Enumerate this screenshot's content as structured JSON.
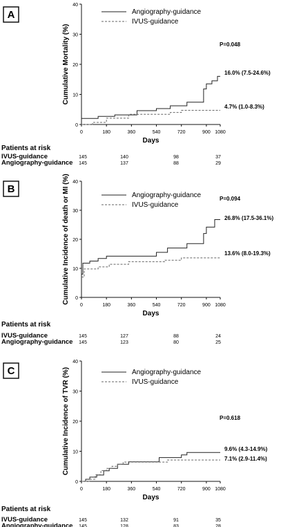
{
  "chart_data": [
    {
      "type": "line",
      "panel_label": "A",
      "ylabel": "Cumulative Mortality (%)",
      "xlabel": "Days",
      "xlim": [
        0,
        1000
      ],
      "ylim": [
        0,
        40
      ],
      "xticks": [
        0,
        180,
        360,
        540,
        720,
        900,
        1080
      ],
      "xtick_labels": [
        "0",
        "180",
        "360",
        "540",
        "720",
        "900",
        "1080"
      ],
      "yticks": [
        0,
        10,
        20,
        30,
        40
      ],
      "legend": [
        "Angiography-guidance",
        "IVUS-guidance"
      ],
      "p_value": "P=0.048",
      "series": [
        {
          "name": "Angiography-guidance",
          "style": "solid",
          "x": [
            0,
            120,
            240,
            400,
            540,
            640,
            760,
            880,
            900,
            940,
            980,
            1000
          ],
          "y": [
            2,
            2.7,
            3.2,
            4.6,
            5.3,
            6.2,
            7.4,
            11.8,
            13.5,
            14.5,
            16.0,
            16.0
          ],
          "end_label": "16.0% (7.5-24.6%)"
        },
        {
          "name": "IVUS-guidance",
          "style": "dashed",
          "x": [
            0,
            80,
            180,
            340,
            520,
            640,
            720,
            840,
            1000
          ],
          "y": [
            0,
            0.7,
            2.1,
            3.4,
            3.4,
            4.0,
            4.7,
            4.7,
            4.7
          ],
          "end_label": "4.7% (1.0-8.3%)"
        }
      ],
      "at_risk": {
        "title": "Patients at risk",
        "rows": [
          {
            "name": "IVUS-guidance",
            "values": [
              "145",
              "140",
              "98",
              "37"
            ]
          },
          {
            "name": "Angiography-guidance",
            "values": [
              "145",
              "137",
              "88",
              "29"
            ]
          }
        ]
      }
    },
    {
      "type": "line",
      "panel_label": "B",
      "ylabel": "Cumulative Incidence of death or MI (%)",
      "xlabel": "Days",
      "xlim": [
        0,
        1000
      ],
      "ylim": [
        0,
        40
      ],
      "xticks": [
        0,
        180,
        360,
        540,
        720,
        900,
        1080
      ],
      "xtick_labels": [
        "0",
        "180",
        "360",
        "540",
        "720",
        "900",
        "1080"
      ],
      "yticks": [
        0,
        10,
        20,
        30,
        40
      ],
      "legend": [
        "Angiography-guidance",
        "IVUS-guidance"
      ],
      "p_value": "P=0.094",
      "series": [
        {
          "name": "Angiography-guidance",
          "style": "solid",
          "x": [
            0,
            10,
            60,
            120,
            180,
            540,
            620,
            760,
            880,
            900,
            960,
            1000
          ],
          "y": [
            8,
            11.8,
            12.5,
            13.4,
            14.2,
            15.5,
            17.0,
            18.5,
            22.0,
            24.2,
            26.8,
            26.8
          ],
          "end_label": "26.8% (17.5-36.1%)"
        },
        {
          "name": "IVUS-guidance",
          "style": "dashed",
          "x": [
            0,
            20,
            120,
            200,
            340,
            600,
            720,
            1000
          ],
          "y": [
            7,
            9.8,
            10.5,
            11.4,
            12.3,
            12.8,
            13.6,
            13.6
          ],
          "end_label": "13.6% (8.0-19.3%)"
        }
      ],
      "at_risk": {
        "title": "Patients at risk",
        "rows": [
          {
            "name": "IVUS-guidance",
            "values": [
              "145",
              "127",
              "88",
              "24"
            ]
          },
          {
            "name": "Angiography-guidance",
            "values": [
              "145",
              "123",
              "80",
              "25"
            ]
          }
        ]
      }
    },
    {
      "type": "line",
      "panel_label": "C",
      "ylabel": "Cumulative Incidence of TVR (%)",
      "xlabel": "Days",
      "xlim": [
        0,
        1000
      ],
      "ylim": [
        0,
        40
      ],
      "xticks": [
        0,
        180,
        360,
        540,
        720,
        900,
        1080
      ],
      "xtick_labels": [
        "0",
        "180",
        "360",
        "540",
        "720",
        "900",
        "1080"
      ],
      "yticks": [
        0,
        10,
        20,
        30,
        40
      ],
      "legend": [
        "Angiography-guidance",
        "IVUS-guidance"
      ],
      "p_value": "P=0.618",
      "series": [
        {
          "name": "Angiography-guidance",
          "style": "solid",
          "x": [
            0,
            30,
            60,
            110,
            160,
            200,
            260,
            340,
            400,
            560,
            720,
            760,
            1000
          ],
          "y": [
            0,
            0.7,
            1.4,
            2.1,
            3.5,
            4.3,
            5.7,
            6.5,
            6.5,
            7.9,
            8.8,
            9.6,
            9.6
          ],
          "end_label": "9.6% (4.3-14.9%)"
        },
        {
          "name": "IVUS-guidance",
          "style": "dashed",
          "x": [
            0,
            60,
            100,
            140,
            180,
            220,
            260,
            300,
            620,
            1000
          ],
          "y": [
            0,
            0.7,
            2.2,
            3.6,
            4.3,
            5.0,
            5.7,
            6.4,
            7.1,
            7.1
          ],
          "end_label": "7.1% (2.9-11.4%)"
        }
      ],
      "at_risk": {
        "title": "Patients at risk",
        "rows": [
          {
            "name": "IVUS-guidance",
            "values": [
              "145",
              "132",
              "91",
              "35"
            ]
          },
          {
            "name": "Angiography-guidance",
            "values": [
              "145",
              "128",
              "83",
              "28"
            ]
          }
        ]
      }
    }
  ]
}
